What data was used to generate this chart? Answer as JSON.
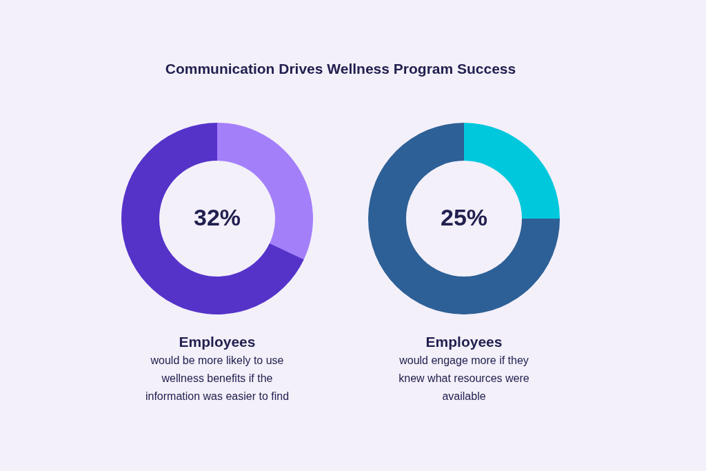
{
  "chart_data": [
    {
      "type": "donut",
      "title": "Communication Drives Wellness Program Success",
      "categories": [
        null,
        null
      ],
      "values": [
        32,
        68
      ],
      "colors": [
        "#a47ffa",
        "#5533c9"
      ],
      "value_labels": [
        "32%",
        null
      ],
      "annotations": [
        "Employees",
        "would be more likely to use\nwellness benefits if the\ninformation was easier to find"
      ]
    },
    {
      "type": "donut",
      "categories": [
        null,
        null
      ],
      "values": [
        25,
        75
      ],
      "colors": [
        "#00c8dc",
        "#2d6096"
      ],
      "value_labels": [
        "25%",
        null
      ],
      "annotations": [
        "Employees",
        "would engage more if they\nknew what resources were\navailable"
      ]
    }
  ]
}
